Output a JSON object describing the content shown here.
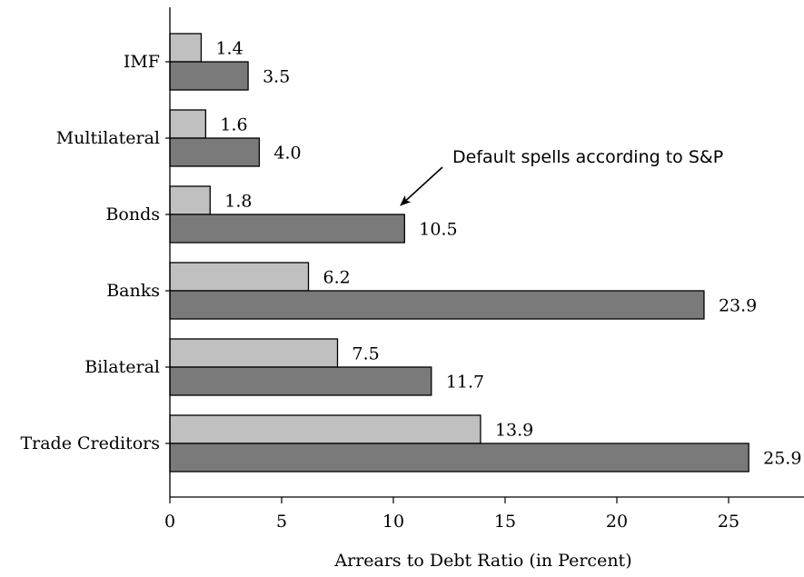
{
  "chart_data": {
    "type": "bar",
    "orientation": "horizontal",
    "categories": [
      "IMF",
      "Multilateral",
      "Bonds",
      "Banks",
      "Bilateral",
      "Trade Creditors"
    ],
    "series": [
      {
        "values": [
          1.4,
          1.6,
          1.8,
          6.2,
          7.5,
          13.9
        ],
        "color": "#c0c0c0"
      },
      {
        "values": [
          3.5,
          4.0,
          10.5,
          23.9,
          11.7,
          25.9
        ],
        "color": "#7a7a7a"
      }
    ],
    "value_labels": [
      [
        "1.4",
        "1.6",
        "1.8",
        "6.2",
        "7.5",
        "13.9"
      ],
      [
        "3.5",
        "4.0",
        "10.5",
        "23.9",
        "11.7",
        "25.9"
      ]
    ],
    "xlabel": "Arrears to Debt Ratio (in Percent)",
    "xlim": [
      0,
      28.5
    ],
    "xticks": [
      0,
      5,
      10,
      15,
      20,
      25
    ],
    "xtick_labels": [
      "0",
      "5",
      "10",
      "15",
      "20",
      "25"
    ],
    "grid": false,
    "annotation": {
      "text": "Default spells according to S&P",
      "target": {
        "category": "Bonds",
        "value": 10.5
      }
    }
  }
}
